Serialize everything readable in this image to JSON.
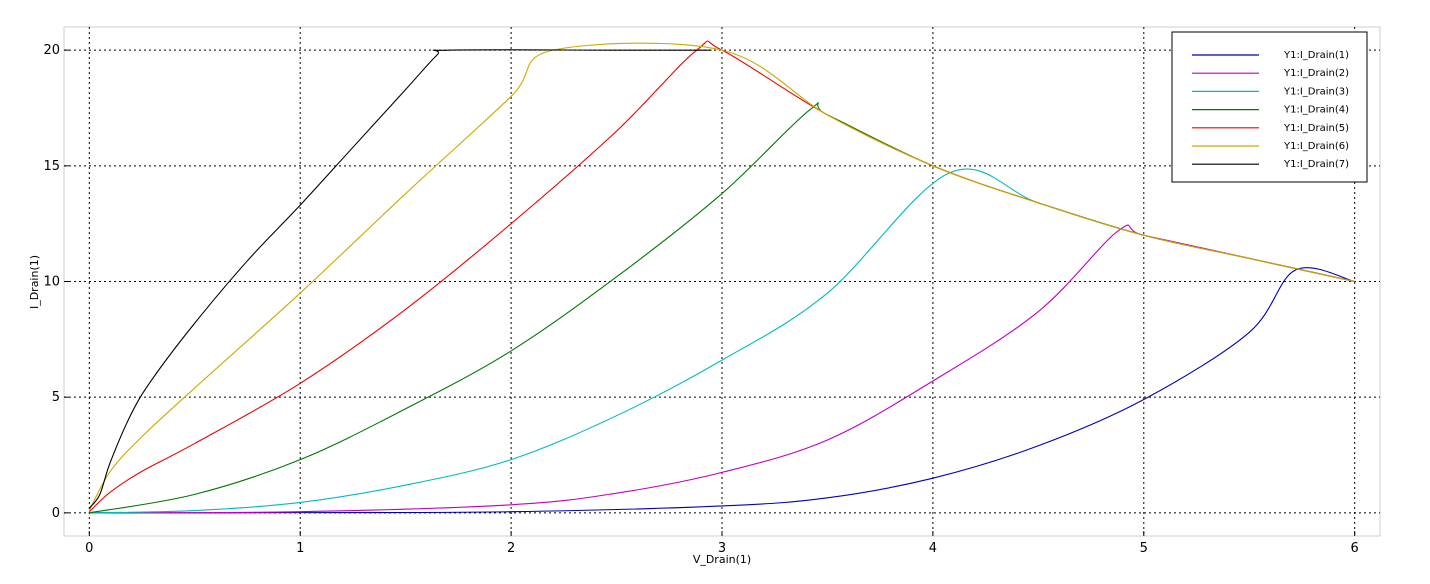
{
  "chart_data": {
    "type": "line",
    "title": "",
    "xlabel": "V_Drain(1)",
    "ylabel": "I_Drain(1)",
    "xlim": [
      -0.12,
      6.12
    ],
    "ylim": [
      -1.0,
      21.0
    ],
    "xticks": [
      0,
      1,
      2,
      3,
      4,
      5,
      6
    ],
    "xtick_labels": [
      "0",
      "1",
      "2",
      "3",
      "4",
      "5",
      "6"
    ],
    "yticks": [
      0,
      5,
      10,
      15,
      20
    ],
    "ytick_labels": [
      "0",
      "5",
      "10",
      "15",
      "20"
    ],
    "grid": true,
    "legend_position": "top-right",
    "series": [
      {
        "name": "Y1:I_Drain(1)",
        "color": "#0000bb",
        "x": [
          0,
          1,
          2,
          3,
          3.5,
          4,
          4.5,
          5,
          5.5,
          5.72,
          6
        ],
        "y": [
          0,
          0.01,
          0.05,
          0.3,
          0.65,
          1.5,
          2.9,
          4.9,
          7.8,
          10.5,
          10.0
        ]
      },
      {
        "name": "Y1:I_Drain(2)",
        "color": "#c000c0",
        "x": [
          0,
          1,
          2,
          2.5,
          3,
          3.5,
          4,
          4.5,
          4.88,
          5,
          5.5,
          6
        ],
        "y": [
          0,
          0.05,
          0.35,
          0.85,
          1.75,
          3.15,
          5.7,
          8.7,
          12.2,
          12.0,
          11.0,
          10.0
        ]
      },
      {
        "name": "Y1:I_Drain(3)",
        "color": "#00bbbb",
        "x": [
          0,
          0.5,
          1,
          1.5,
          2,
          2.5,
          3,
          3.5,
          4.08,
          4.5,
          5,
          5.5,
          6
        ],
        "y": [
          0,
          0.1,
          0.45,
          1.2,
          2.3,
          4.2,
          6.6,
          9.5,
          14.7,
          13.4,
          12.0,
          11.0,
          10.0
        ]
      },
      {
        "name": "Y1:I_Drain(4)",
        "color": "#007700",
        "x": [
          0,
          0.5,
          1,
          1.5,
          2,
          2.5,
          3,
          3.42,
          3.5,
          4,
          4.5,
          5,
          5.5,
          6
        ],
        "y": [
          0,
          0.8,
          2.3,
          4.5,
          7.0,
          10.2,
          13.8,
          17.45,
          17.2,
          15.0,
          13.4,
          12.0,
          11.0,
          10.0
        ]
      },
      {
        "name": "Y1:I_Drain(5)",
        "color": "#ee0000",
        "x": [
          0,
          0.1,
          0.25,
          0.5,
          1,
          1.5,
          2,
          2.5,
          2.88,
          3,
          3.5,
          4,
          4.5,
          5,
          5.5,
          6
        ],
        "y": [
          0.05,
          0.9,
          1.8,
          3.0,
          5.6,
          8.8,
          12.5,
          16.5,
          20.0,
          20.0,
          17.2,
          15.0,
          13.4,
          12.0,
          11.0,
          10.0
        ]
      },
      {
        "name": "Y1:I_Drain(6)",
        "color": "#ccaa00",
        "x": [
          0,
          0.1,
          0.25,
          0.5,
          1,
          1.5,
          2,
          2.2,
          3,
          3.5,
          4,
          4.5,
          5,
          5.5,
          6
        ],
        "y": [
          0.1,
          1.8,
          3.3,
          5.4,
          9.5,
          13.8,
          18.0,
          20.0,
          20.0,
          17.2,
          15.0,
          13.4,
          12.0,
          11.0,
          10.0
        ]
      },
      {
        "name": "Y1:I_Drain(7)",
        "color": "#000000",
        "x": [
          0,
          0.05,
          0.1,
          0.2,
          0.3,
          0.5,
          0.75,
          1,
          1.25,
          1.5,
          1.65,
          1.7,
          2.5,
          2.95
        ],
        "y": [
          0.2,
          0.8,
          2.2,
          4.3,
          5.8,
          8.2,
          10.9,
          13.3,
          15.8,
          18.3,
          19.8,
          20.0,
          20.0,
          20.0
        ]
      }
    ]
  }
}
